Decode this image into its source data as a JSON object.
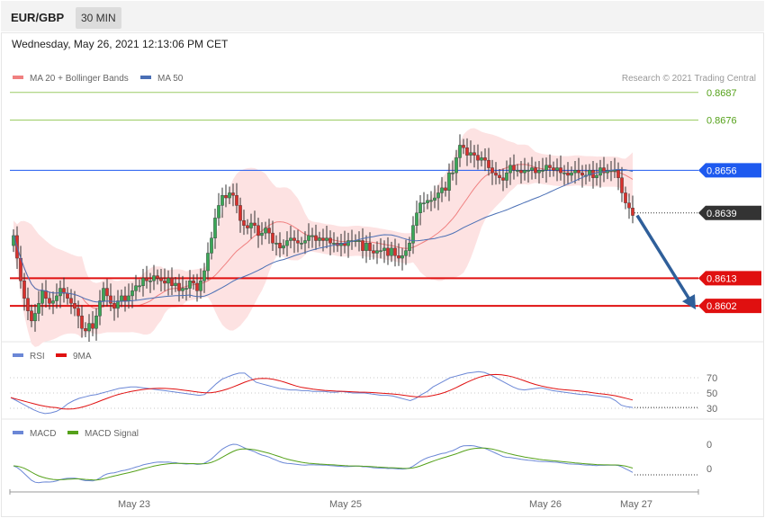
{
  "header": {
    "symbol": "EUR/GBP",
    "timeframe": "30 MIN",
    "datetime": "Wednesday, May 26, 2021 12:13:06 PM CET"
  },
  "credit": "Research © 2021 Trading Central",
  "colors": {
    "bull": "#3aa757",
    "bear": "#d9302c",
    "ma20": "#f08080",
    "ma50": "#4a6fb5",
    "band_fill": "#fde2e2",
    "resistance_green": "#9ccc65",
    "level_blue": "#1e5aef",
    "level_red": "#e01010",
    "arrow": "#2f5f9a",
    "rsi": "#6b87d6",
    "rsi_ma": "#e01010",
    "macd": "#6b87d6",
    "macd_signal": "#55a11a"
  },
  "chart_data": [
    {
      "type": "candlestick",
      "panel": "price",
      "legend": [
        "MA 20 + Bollinger Bands",
        "MA 50"
      ],
      "ylim": [
        0.859,
        0.87
      ],
      "x_ticks": [
        "May 23",
        "May 25",
        "May 26",
        "May 27"
      ],
      "levels": [
        {
          "label": "0.8687",
          "value": 0.8687,
          "color": "#9ccc65"
        },
        {
          "label": "0.8676",
          "value": 0.8676,
          "color": "#9ccc65"
        },
        {
          "label": "0.8656",
          "value": 0.8656,
          "color": "#1e5aef"
        },
        {
          "label": "0.8639",
          "value": 0.8639,
          "color": "#333333"
        },
        {
          "label": "0.8613",
          "value": 0.8613,
          "color": "#e01010"
        },
        {
          "label": "0.8602",
          "value": 0.8602,
          "color": "#e01010"
        }
      ],
      "forecast_arrow": {
        "from": 0.8638,
        "to": 0.8602
      },
      "closes": [
        0.863,
        0.8621,
        0.8612,
        0.8605,
        0.86,
        0.8596,
        0.8599,
        0.8603,
        0.8608,
        0.8605,
        0.8603,
        0.8604,
        0.8606,
        0.8609,
        0.8607,
        0.8605,
        0.8603,
        0.8601,
        0.8598,
        0.8593,
        0.8592,
        0.8595,
        0.8593,
        0.8598,
        0.8604,
        0.8609,
        0.8606,
        0.8603,
        0.8601,
        0.8604,
        0.8606,
        0.8604,
        0.8606,
        0.8608,
        0.861,
        0.861,
        0.8613,
        0.8612,
        0.8612,
        0.8614,
        0.8613,
        0.8612,
        0.8611,
        0.8613,
        0.861,
        0.8611,
        0.8608,
        0.8609,
        0.8609,
        0.8612,
        0.8611,
        0.8608,
        0.8612,
        0.8616,
        0.8623,
        0.8629,
        0.8637,
        0.8642,
        0.8646,
        0.8645,
        0.8647,
        0.8646,
        0.8642,
        0.8636,
        0.8634,
        0.8633,
        0.8635,
        0.8634,
        0.863,
        0.8631,
        0.8633,
        0.8631,
        0.8627,
        0.8627,
        0.8625,
        0.8626,
        0.8628,
        0.8629,
        0.8628,
        0.8627,
        0.8627,
        0.8628,
        0.863,
        0.863,
        0.8628,
        0.8629,
        0.8628,
        0.8629,
        0.8627,
        0.8627,
        0.8626,
        0.8627,
        0.8626,
        0.8628,
        0.8628,
        0.8628,
        0.8628,
        0.8624,
        0.8627,
        0.8624,
        0.8623,
        0.8624,
        0.8624,
        0.8625,
        0.8622,
        0.8625,
        0.8622,
        0.8621,
        0.8622,
        0.8624,
        0.8627,
        0.8634,
        0.8639,
        0.8643,
        0.8643,
        0.8644,
        0.8644,
        0.8645,
        0.8647,
        0.8649,
        0.8648,
        0.8655,
        0.8655,
        0.8661,
        0.8666,
        0.8665,
        0.8662,
        0.8663,
        0.8662,
        0.866,
        0.8661,
        0.866,
        0.8657,
        0.8655,
        0.8654,
        0.8653,
        0.8652,
        0.8655,
        0.8658,
        0.8656,
        0.8656,
        0.8655,
        0.8656,
        0.8656,
        0.8657,
        0.8655,
        0.8656,
        0.8656,
        0.8658,
        0.8657,
        0.8656,
        0.8657,
        0.8655,
        0.8655,
        0.8654,
        0.8655,
        0.8656,
        0.8655,
        0.8654,
        0.8654,
        0.8656,
        0.8653,
        0.8654,
        0.8657,
        0.8655,
        0.8656,
        0.8656,
        0.8656,
        0.8653,
        0.8647,
        0.8643,
        0.8641,
        0.8638
      ]
    },
    {
      "type": "line",
      "panel": "RSI",
      "series": [
        {
          "name": "RSI"
        },
        {
          "name": "9MA"
        }
      ],
      "y_ticks": [
        70,
        50,
        30
      ],
      "rsi": [
        44,
        40,
        36,
        32,
        28,
        25,
        23,
        24,
        26,
        30,
        36,
        40,
        43,
        45,
        47,
        48,
        50,
        52,
        54,
        56,
        57,
        58,
        58,
        57,
        56,
        55,
        54,
        53,
        52,
        51,
        50,
        49,
        48,
        47,
        48,
        55,
        62,
        68,
        71,
        74,
        76,
        76,
        70,
        64,
        62,
        60,
        58,
        56,
        55,
        54,
        54,
        53,
        53,
        52,
        52,
        52,
        51,
        51,
        52,
        51,
        50,
        50,
        50,
        49,
        48,
        47,
        47,
        46,
        44,
        42,
        40,
        43,
        48,
        52,
        58,
        62,
        66,
        70,
        72,
        74,
        76,
        77,
        78,
        77,
        74,
        70,
        66,
        62,
        58,
        55,
        54,
        55,
        56,
        57,
        55,
        53,
        52,
        51,
        50,
        49,
        48,
        48,
        47,
        46,
        45,
        44,
        40,
        34,
        32,
        31
      ]
    },
    {
      "type": "line",
      "panel": "MACD",
      "series": [
        {
          "name": "MACD"
        },
        {
          "name": "MACD Signal"
        }
      ],
      "y_ticks": [
        "0",
        "0"
      ]
    }
  ]
}
